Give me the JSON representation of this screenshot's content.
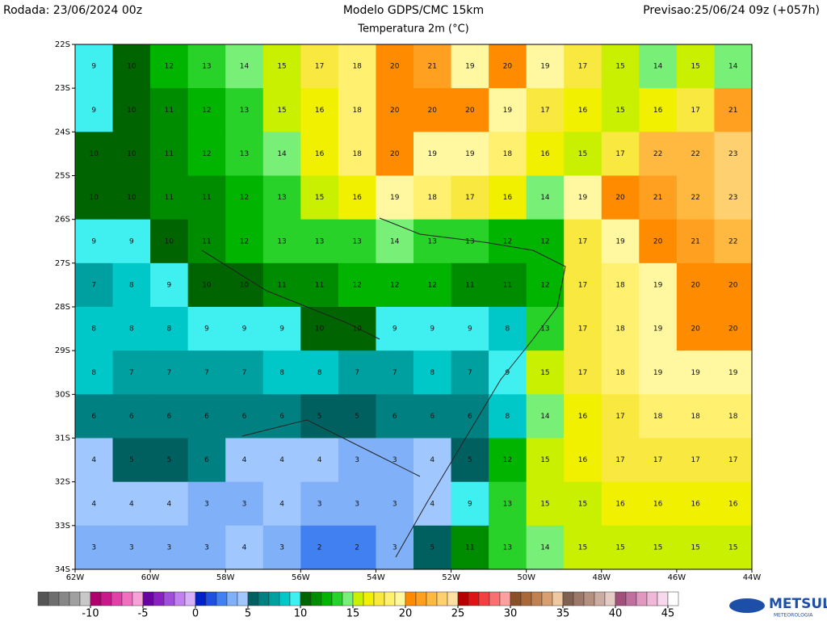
{
  "header": {
    "run": "Rodada: 23/06/2024 00z",
    "model": "Modelo GDPS/CMC 15km",
    "variable": "Temperatura 2m (°C)",
    "forecast": "Previsao:25/06/24 09z (+057h)"
  },
  "map": {
    "lat_labels": [
      "22S",
      "23S",
      "24S",
      "25S",
      "26S",
      "27S",
      "28S",
      "29S",
      "30S",
      "31S",
      "32S",
      "33S",
      "34S"
    ],
    "lon_labels": [
      "62W",
      "60W",
      "58W",
      "56W",
      "54W",
      "52W",
      "50W",
      "48W",
      "46W",
      "44W"
    ],
    "field": [
      [
        9,
        10,
        12,
        13,
        14,
        15,
        17,
        18,
        20,
        21,
        19,
        20,
        19,
        17,
        15,
        14,
        15,
        14
      ],
      [
        9,
        10,
        11,
        12,
        13,
        15,
        16,
        18,
        20,
        20,
        20,
        19,
        17,
        16,
        15,
        16,
        17,
        21
      ],
      [
        10,
        10,
        11,
        12,
        13,
        14,
        16,
        18,
        20,
        19,
        19,
        18,
        16,
        15,
        17,
        22,
        22,
        23
      ],
      [
        10,
        10,
        11,
        11,
        12,
        13,
        15,
        16,
        19,
        18,
        17,
        16,
        14,
        19,
        20,
        21,
        22,
        23
      ],
      [
        9,
        9,
        10,
        11,
        12,
        13,
        13,
        13,
        14,
        13,
        13,
        12,
        12,
        17,
        19,
        20,
        21,
        22
      ],
      [
        7,
        8,
        9,
        10,
        10,
        11,
        11,
        12,
        12,
        12,
        11,
        11,
        12,
        17,
        18,
        19,
        20,
        20
      ],
      [
        8,
        8,
        8,
        9,
        9,
        9,
        10,
        10,
        9,
        9,
        9,
        8,
        13,
        17,
        18,
        19,
        20,
        20
      ],
      [
        8,
        7,
        7,
        7,
        7,
        8,
        8,
        7,
        7,
        8,
        7,
        9,
        15,
        17,
        18,
        19,
        19,
        19
      ],
      [
        6,
        6,
        6,
        6,
        6,
        6,
        5,
        5,
        6,
        6,
        6,
        8,
        14,
        16,
        17,
        18,
        18,
        18
      ],
      [
        4,
        5,
        5,
        6,
        4,
        4,
        4,
        3,
        3,
        4,
        5,
        12,
        15,
        16,
        17,
        17,
        17,
        17
      ],
      [
        4,
        4,
        4,
        3,
        3,
        4,
        3,
        3,
        3,
        4,
        9,
        13,
        15,
        15,
        16,
        16,
        16,
        16
      ],
      [
        3,
        3,
        3,
        3,
        4,
        3,
        2,
        2,
        3,
        5,
        11,
        13,
        14,
        15,
        15,
        15,
        15,
        15
      ]
    ]
  },
  "colorbar": {
    "min": -15,
    "ticks": [
      -10,
      -5,
      0,
      5,
      10,
      15,
      20,
      25,
      30,
      35,
      40,
      45
    ],
    "colors": [
      "#555555",
      "#6e6e6e",
      "#878787",
      "#a0a0a0",
      "#c8c8c8",
      "#b0006e",
      "#c8188c",
      "#e040a8",
      "#f070c0",
      "#f8a0d8",
      "#6a00a0",
      "#8a20c0",
      "#a050d8",
      "#c080f0",
      "#d8b0f8",
      "#0020c8",
      "#2050e0",
      "#4080f0",
      "#80b0f8",
      "#a0c8ff",
      "#006060",
      "#008080",
      "#00a0a0",
      "#00c8c8",
      "#40f0f0",
      "#006400",
      "#008c00",
      "#00b400",
      "#28d228",
      "#78f078",
      "#c8f000",
      "#f0f000",
      "#f8e840",
      "#fff070",
      "#fff8a0",
      "#ff8c00",
      "#ffa020",
      "#ffb840",
      "#ffd070",
      "#ffe0a0",
      "#b40000",
      "#dc1414",
      "#f04040",
      "#f87070",
      "#ffa0a0",
      "#8c5028",
      "#a86838",
      "#c08050",
      "#d8a070",
      "#f0c8a0",
      "#806050",
      "#9c7868",
      "#b49080",
      "#ccaca0",
      "#e4ccc4",
      "#a0507a",
      "#c070a0",
      "#e098c0",
      "#f0b8d8",
      "#f8d8ec",
      "#ffffff"
    ]
  },
  "logo": {
    "name": "METSUL",
    "tagline": "METEOROLOGIA"
  }
}
